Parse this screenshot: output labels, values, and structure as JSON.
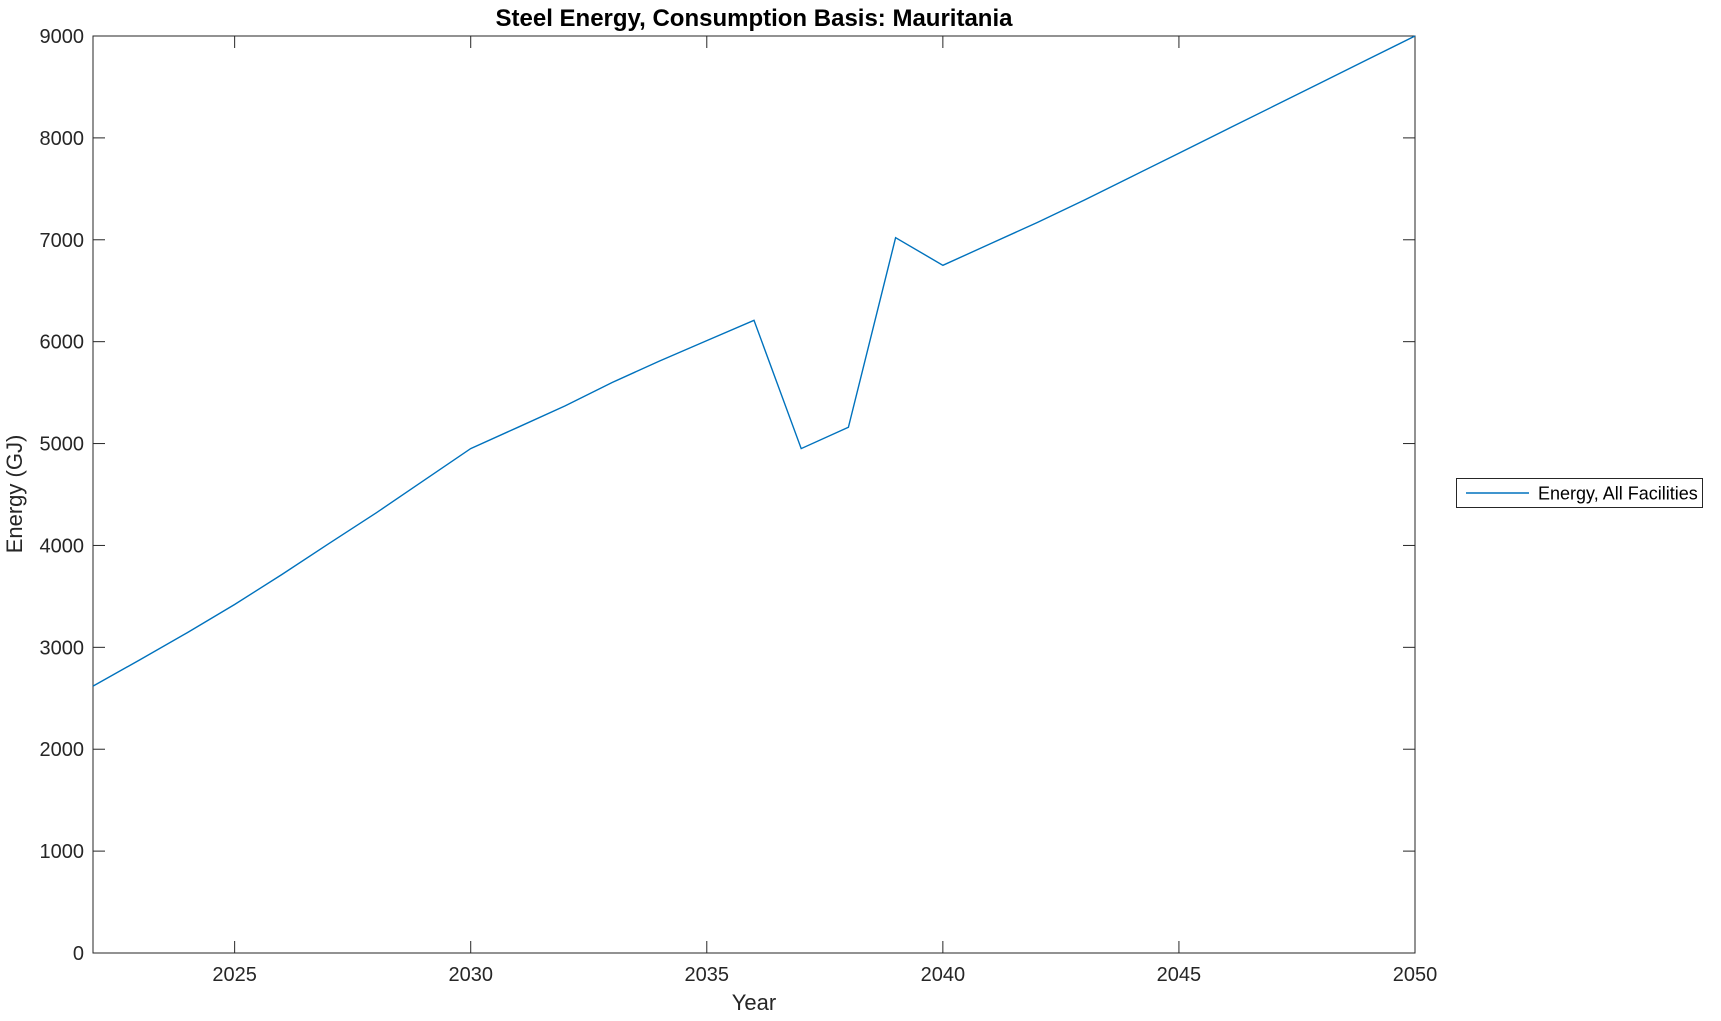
{
  "figure": {
    "background": "#ffffff",
    "axis_color": "#262626"
  },
  "chart_data": {
    "type": "line",
    "title": "Steel Energy, Consumption Basis: Mauritania",
    "xlabel": "Year",
    "ylabel": "Energy (GJ)",
    "xlim": [
      2022,
      2050
    ],
    "ylim": [
      0,
      9000
    ],
    "x_ticks": [
      2025,
      2030,
      2035,
      2040,
      2045,
      2050
    ],
    "y_ticks": [
      0,
      1000,
      2000,
      3000,
      4000,
      5000,
      6000,
      7000,
      8000,
      9000
    ],
    "grid": false,
    "legend": {
      "position": "right-outside",
      "entries": [
        "Energy, All Facilities"
      ]
    },
    "series": [
      {
        "name": "Energy, All Facilities",
        "color": "#0072BD",
        "x": [
          2022,
          2023,
          2024,
          2025,
          2026,
          2027,
          2028,
          2029,
          2030,
          2031,
          2032,
          2033,
          2034,
          2035,
          2036,
          2037,
          2038,
          2039,
          2040,
          2041,
          2042,
          2043,
          2044,
          2045,
          2046,
          2047,
          2048,
          2049,
          2050
        ],
        "values": [
          2620,
          2880,
          3145,
          3420,
          3715,
          4020,
          4320,
          4635,
          4950,
          5160,
          5370,
          5600,
          5810,
          6010,
          6210,
          4950,
          5160,
          7020,
          6750,
          6960,
          7170,
          7390,
          7620,
          7850,
          8080,
          8310,
          8540,
          8770,
          9000
        ]
      }
    ]
  }
}
